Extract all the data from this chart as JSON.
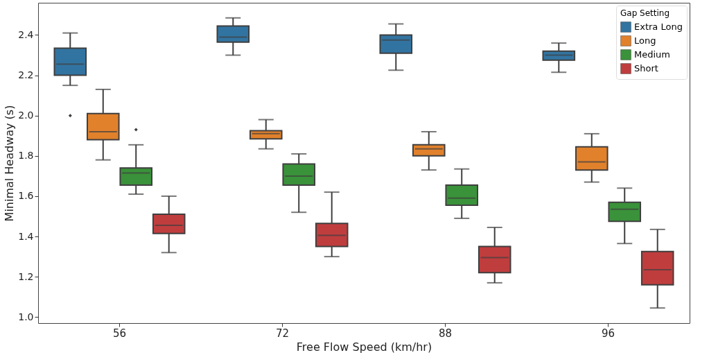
{
  "chart_data": {
    "type": "box",
    "xlabel": "Free Flow Speed (km/hr)",
    "ylabel": "Minimal Headway (s)",
    "legend_title": "Gap Setting",
    "legend": "top right",
    "grid": false,
    "categories": [
      "56",
      "72",
      "88",
      "96"
    ],
    "ylim": [
      0.97,
      2.56
    ],
    "yticks": [
      {
        "value": 1,
        "label": "1.0"
      },
      1.2,
      1.4,
      1.6,
      1.8,
      {
        "value": 2,
        "label": "2.0"
      },
      2.2,
      2.4
    ],
    "series": [
      {
        "name": "Extra Long",
        "color": "#3274a1",
        "boxes": [
          {
            "low": 2.15,
            "q1": 2.2,
            "median": 2.255,
            "q3": 2.335,
            "high": 2.41,
            "outliers": [
              2.0
            ]
          },
          {
            "low": 2.3,
            "q1": 2.365,
            "median": 2.39,
            "q3": 2.445,
            "high": 2.485
          },
          {
            "low": 2.225,
            "q1": 2.31,
            "median": 2.375,
            "q3": 2.4,
            "high": 2.455
          },
          {
            "low": 2.215,
            "q1": 2.275,
            "median": 2.3,
            "q3": 2.32,
            "high": 2.36
          }
        ]
      },
      {
        "name": "Long",
        "color": "#e1812c",
        "boxes": [
          {
            "low": 1.78,
            "q1": 1.88,
            "median": 1.92,
            "q3": 2.01,
            "high": 2.13
          },
          {
            "low": 1.835,
            "q1": 1.885,
            "median": 1.91,
            "q3": 1.925,
            "high": 1.98
          },
          {
            "low": 1.73,
            "q1": 1.8,
            "median": 1.835,
            "q3": 1.855,
            "high": 1.92
          },
          {
            "low": 1.67,
            "q1": 1.73,
            "median": 1.77,
            "q3": 1.845,
            "high": 1.91
          }
        ]
      },
      {
        "name": "Medium",
        "color": "#3a923a",
        "boxes": [
          {
            "low": 1.61,
            "q1": 1.655,
            "median": 1.715,
            "q3": 1.74,
            "high": 1.855,
            "outliers": [
              1.93
            ]
          },
          {
            "low": 1.52,
            "q1": 1.655,
            "median": 1.7,
            "q3": 1.76,
            "high": 1.81
          },
          {
            "low": 1.49,
            "q1": 1.555,
            "median": 1.59,
            "q3": 1.655,
            "high": 1.735
          },
          {
            "low": 1.365,
            "q1": 1.475,
            "median": 1.535,
            "q3": 1.57,
            "high": 1.64
          }
        ]
      },
      {
        "name": "Short",
        "color": "#c03d3e",
        "boxes": [
          {
            "low": 1.32,
            "q1": 1.415,
            "median": 1.455,
            "q3": 1.51,
            "high": 1.6
          },
          {
            "low": 1.3,
            "q1": 1.35,
            "median": 1.405,
            "q3": 1.465,
            "high": 1.62
          },
          {
            "low": 1.17,
            "q1": 1.22,
            "median": 1.295,
            "q3": 1.35,
            "high": 1.445
          },
          {
            "low": 1.045,
            "q1": 1.16,
            "median": 1.235,
            "q3": 1.325,
            "high": 1.435
          }
        ]
      }
    ]
  }
}
